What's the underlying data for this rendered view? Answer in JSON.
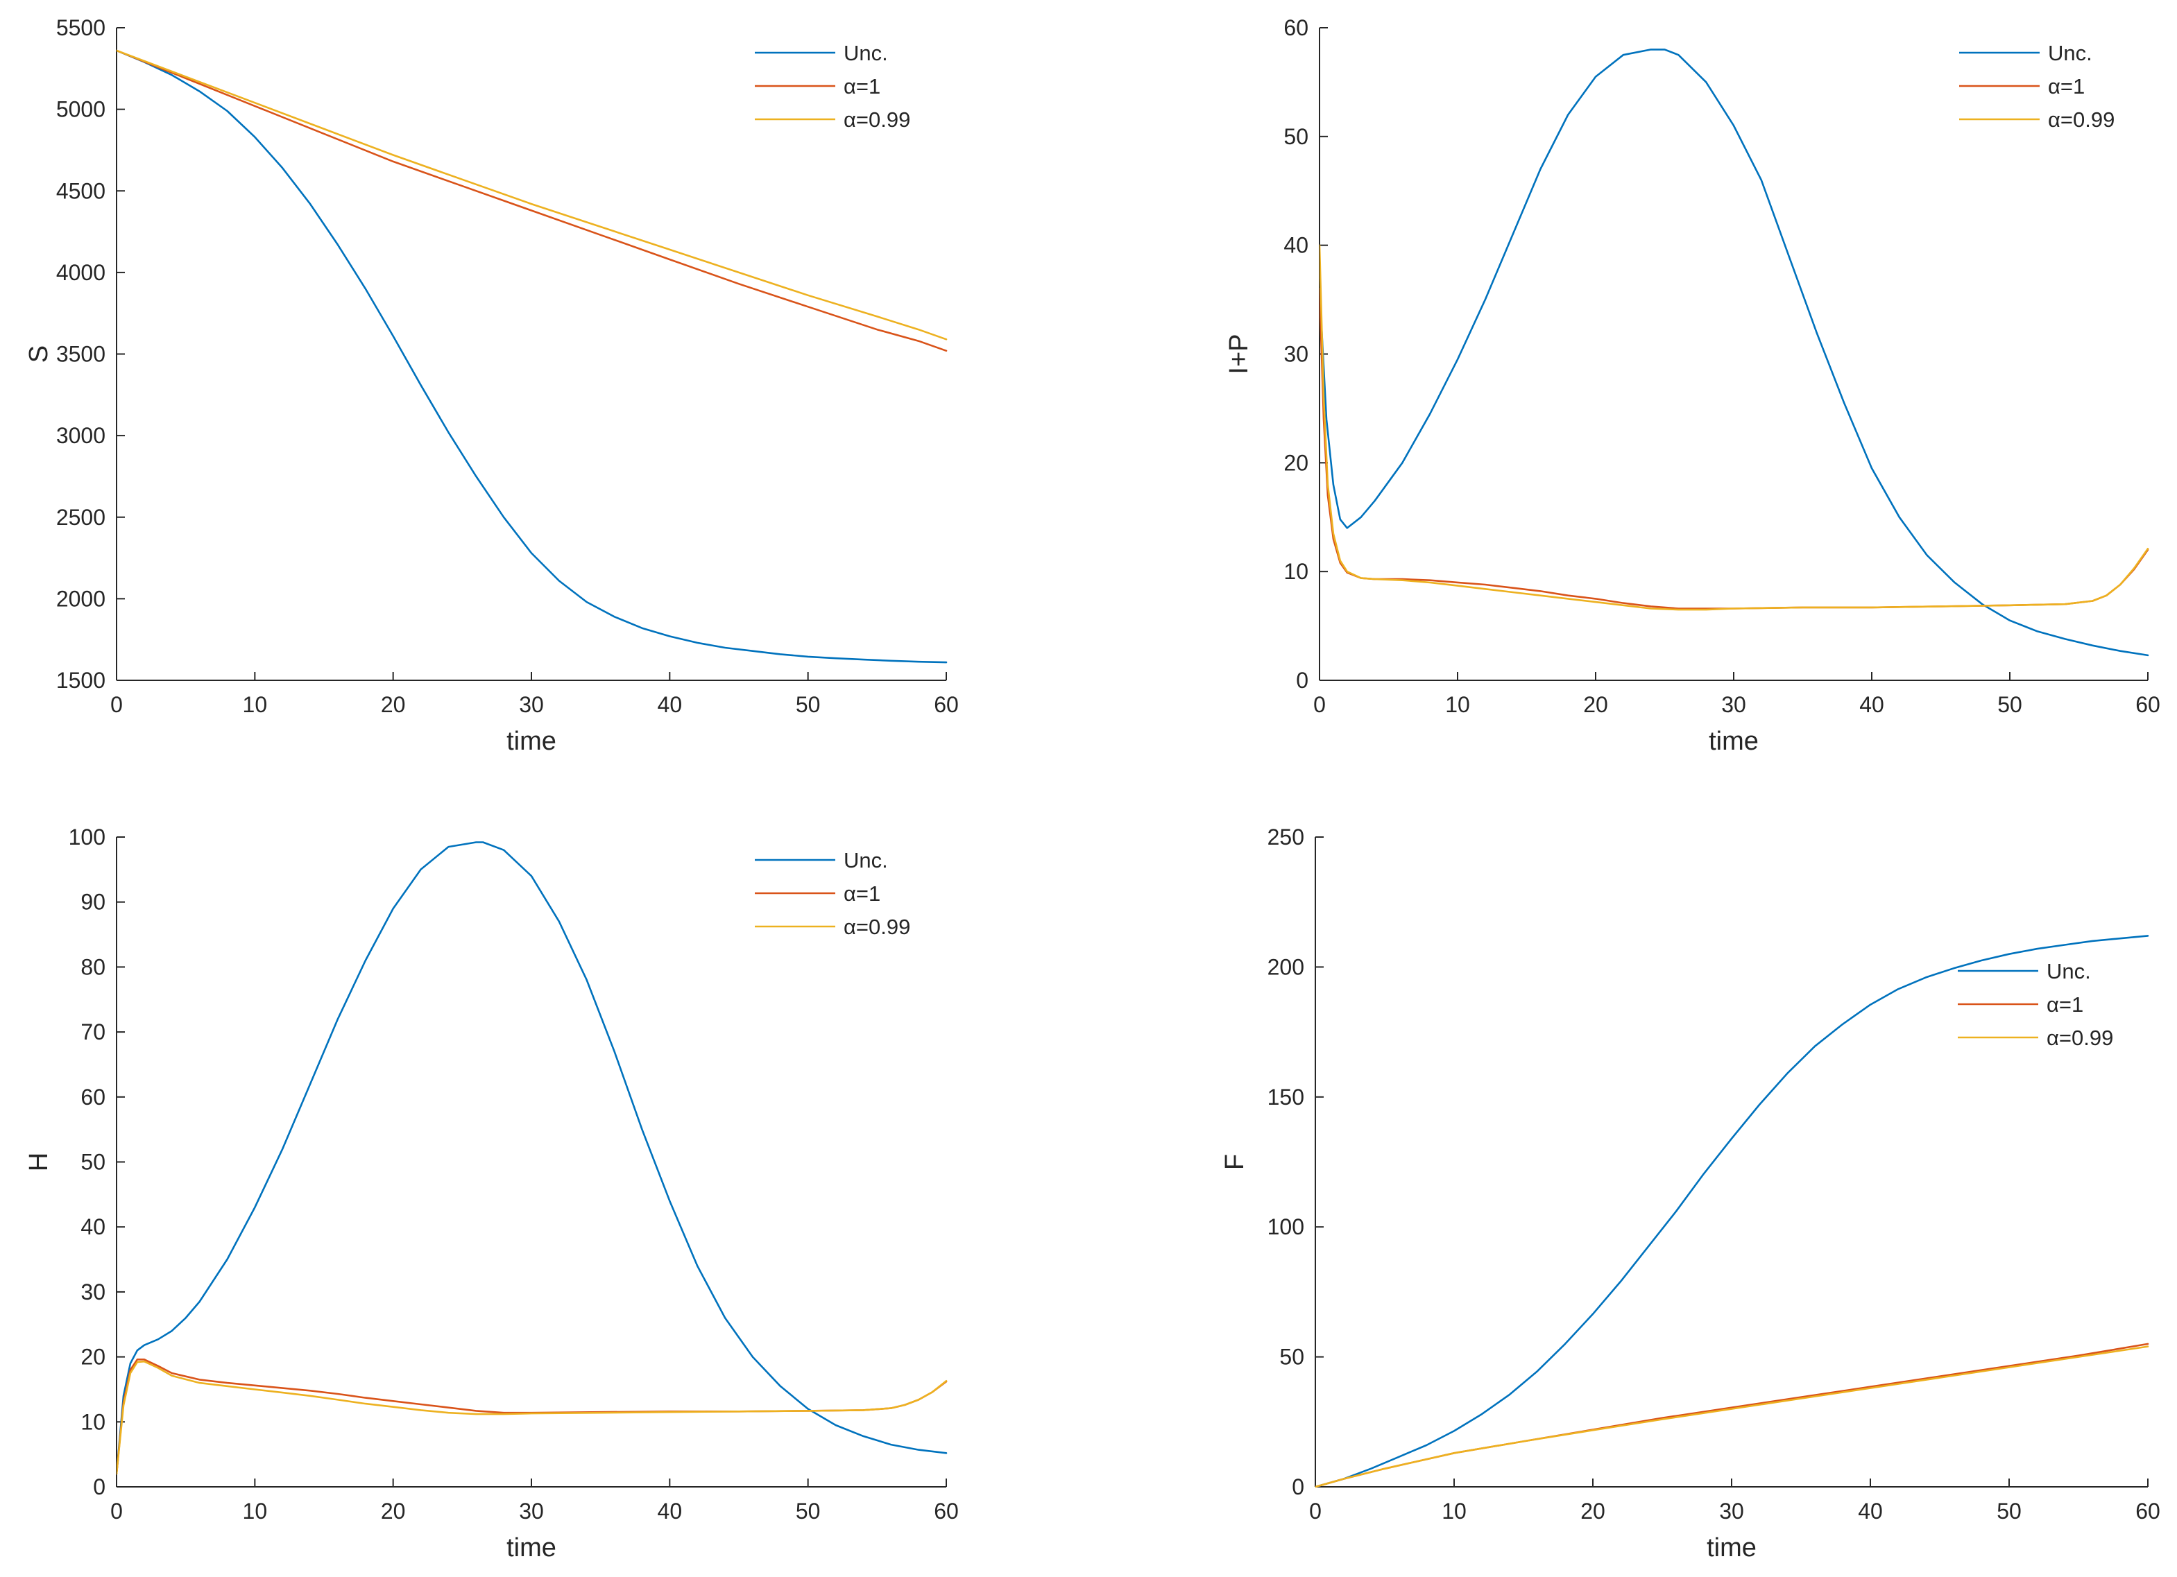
{
  "figure": {
    "background": "#ffffff",
    "axis_color": "#262626"
  },
  "chart_data": [
    {
      "id": "S",
      "type": "line",
      "xlabel": "time",
      "ylabel": "S",
      "xlim": [
        0,
        60
      ],
      "ylim": [
        1500,
        5500
      ],
      "xticks": [
        0,
        10,
        20,
        30,
        40,
        50,
        60
      ],
      "yticks": [
        1500,
        2000,
        2500,
        3000,
        3500,
        4000,
        4500,
        5000,
        5500
      ],
      "legend": {
        "position": "top-right",
        "entries": [
          "Unc.",
          "α=1",
          "α=0.99"
        ]
      },
      "series": [
        {
          "name": "Unc.",
          "color": "#0072BD",
          "x": [
            0,
            2,
            4,
            6,
            8,
            10,
            12,
            14,
            16,
            18,
            20,
            22,
            24,
            26,
            28,
            30,
            32,
            34,
            36,
            38,
            40,
            42,
            44,
            46,
            48,
            50,
            52,
            54,
            56,
            58,
            60
          ],
          "y": [
            5360,
            5290,
            5210,
            5110,
            4990,
            4830,
            4640,
            4420,
            4170,
            3900,
            3610,
            3310,
            3020,
            2750,
            2500,
            2280,
            2110,
            1980,
            1890,
            1820,
            1770,
            1730,
            1700,
            1680,
            1660,
            1645,
            1635,
            1627,
            1620,
            1614,
            1610
          ]
        },
        {
          "name": "α=1",
          "color": "#D95319",
          "x": [
            0,
            5,
            10,
            15,
            20,
            25,
            30,
            35,
            40,
            45,
            50,
            55,
            58,
            60
          ],
          "y": [
            5360,
            5190,
            5020,
            4850,
            4680,
            4530,
            4380,
            4230,
            4080,
            3930,
            3790,
            3650,
            3580,
            3520
          ]
        },
        {
          "name": "α=0.99",
          "color": "#EDB120",
          "x": [
            0,
            5,
            10,
            15,
            20,
            25,
            30,
            35,
            40,
            45,
            50,
            55,
            58,
            60
          ],
          "y": [
            5360,
            5200,
            5040,
            4880,
            4720,
            4570,
            4420,
            4280,
            4140,
            4000,
            3860,
            3730,
            3650,
            3590
          ]
        }
      ]
    },
    {
      "id": "IP",
      "type": "line",
      "xlabel": "time",
      "ylabel": "I+P",
      "xlim": [
        0,
        60
      ],
      "ylim": [
        0,
        60
      ],
      "xticks": [
        0,
        10,
        20,
        30,
        40,
        50,
        60
      ],
      "yticks": [
        0,
        10,
        20,
        30,
        40,
        50,
        60
      ],
      "legend": {
        "position": "top-right",
        "entries": [
          "Unc.",
          "α=1",
          "α=0.99"
        ]
      },
      "series": [
        {
          "name": "Unc.",
          "color": "#0072BD",
          "x": [
            0,
            0.5,
            1,
            1.5,
            2,
            3,
            4,
            6,
            8,
            10,
            12,
            14,
            16,
            18,
            20,
            22,
            24,
            25,
            26,
            28,
            30,
            32,
            34,
            36,
            38,
            40,
            42,
            44,
            46,
            48,
            50,
            52,
            54,
            56,
            58,
            60
          ],
          "y": [
            36,
            24,
            18,
            14.8,
            14,
            15,
            16.5,
            20,
            24.5,
            29.5,
            35,
            41,
            47,
            52,
            55.5,
            57.5,
            58,
            58,
            57.5,
            55,
            51,
            46,
            39,
            32,
            25.5,
            19.5,
            15,
            11.5,
            9,
            7,
            5.5,
            4.5,
            3.8,
            3.2,
            2.7,
            2.3
          ]
        },
        {
          "name": "α=1",
          "color": "#D95319",
          "x": [
            0,
            0.3,
            0.6,
            1,
            1.5,
            2,
            3,
            4,
            6,
            8,
            10,
            12,
            14,
            16,
            18,
            20,
            22,
            24,
            26,
            28,
            30,
            35,
            40,
            45,
            50,
            54,
            56,
            57,
            58,
            59,
            60
          ],
          "y": [
            36,
            24,
            17,
            13,
            10.8,
            9.9,
            9.4,
            9.3,
            9.3,
            9.2,
            9,
            8.8,
            8.5,
            8.2,
            7.8,
            7.5,
            7.1,
            6.8,
            6.6,
            6.6,
            6.6,
            6.7,
            6.7,
            6.8,
            6.9,
            7.0,
            7.3,
            7.8,
            8.8,
            10.2,
            12
          ]
        },
        {
          "name": "α=0.99",
          "color": "#EDB120",
          "x": [
            0,
            0.3,
            0.6,
            1,
            1.5,
            2,
            3,
            4,
            6,
            8,
            10,
            12,
            14,
            16,
            18,
            20,
            22,
            24,
            26,
            28,
            30,
            35,
            40,
            45,
            50,
            54,
            56,
            57,
            58,
            59,
            60
          ],
          "y": [
            40,
            26,
            18,
            13.5,
            11,
            10,
            9.4,
            9.3,
            9.2,
            9,
            8.7,
            8.4,
            8.1,
            7.8,
            7.5,
            7.2,
            6.9,
            6.6,
            6.5,
            6.5,
            6.6,
            6.7,
            6.7,
            6.8,
            6.9,
            7.0,
            7.3,
            7.8,
            8.8,
            10.3,
            12.1
          ]
        }
      ]
    },
    {
      "id": "H",
      "type": "line",
      "xlabel": "time",
      "ylabel": "H",
      "xlim": [
        0,
        60
      ],
      "ylim": [
        0,
        100
      ],
      "xticks": [
        0,
        10,
        20,
        30,
        40,
        50,
        60
      ],
      "yticks": [
        0,
        10,
        20,
        30,
        40,
        50,
        60,
        70,
        80,
        90,
        100
      ],
      "legend": {
        "position": "top-right",
        "entries": [
          "Unc.",
          "α=1",
          "α=0.99"
        ]
      },
      "series": [
        {
          "name": "Unc.",
          "color": "#0072BD",
          "x": [
            0,
            0.5,
            1,
            1.5,
            2,
            3,
            4,
            5,
            6,
            8,
            10,
            12,
            14,
            16,
            18,
            20,
            22,
            24,
            26,
            26.5,
            28,
            30,
            32,
            34,
            36,
            38,
            40,
            42,
            44,
            46,
            48,
            50,
            52,
            54,
            56,
            58,
            60
          ],
          "y": [
            2,
            14,
            19,
            21,
            21.8,
            22.7,
            24,
            26,
            28.5,
            35,
            43,
            52,
            62,
            72,
            81,
            89,
            95,
            98.5,
            99.2,
            99.2,
            98,
            94,
            87,
            78,
            67,
            55,
            44,
            34,
            26,
            20,
            15.5,
            12,
            9.5,
            7.8,
            6.5,
            5.7,
            5.2
          ]
        },
        {
          "name": "α=1",
          "color": "#D95319",
          "x": [
            0,
            0.5,
            1,
            1.5,
            2,
            3,
            4,
            6,
            8,
            10,
            12,
            14,
            16,
            18,
            20,
            22,
            24,
            26,
            28,
            30,
            35,
            40,
            45,
            50,
            54,
            56,
            57,
            58,
            59,
            60
          ],
          "y": [
            2,
            13,
            18,
            19.6,
            19.6,
            18.6,
            17.5,
            16.5,
            16,
            15.6,
            15.2,
            14.8,
            14.3,
            13.7,
            13.2,
            12.7,
            12.2,
            11.7,
            11.4,
            11.4,
            11.5,
            11.6,
            11.6,
            11.7,
            11.8,
            12.1,
            12.6,
            13.4,
            14.6,
            16.2
          ]
        },
        {
          "name": "α=0.99",
          "color": "#EDB120",
          "x": [
            0,
            0.5,
            1,
            1.5,
            2,
            3,
            4,
            6,
            8,
            10,
            12,
            14,
            16,
            18,
            20,
            22,
            24,
            26,
            28,
            30,
            35,
            40,
            45,
            50,
            54,
            56,
            57,
            58,
            59,
            60
          ],
          "y": [
            2,
            12.5,
            17.5,
            19.2,
            19.3,
            18.3,
            17.1,
            16,
            15.5,
            15,
            14.5,
            14,
            13.4,
            12.8,
            12.3,
            11.8,
            11.4,
            11.2,
            11.2,
            11.3,
            11.4,
            11.5,
            11.6,
            11.7,
            11.8,
            12.1,
            12.6,
            13.4,
            14.6,
            16.3
          ]
        }
      ]
    },
    {
      "id": "F",
      "type": "line",
      "xlabel": "time",
      "ylabel": "F",
      "xlim": [
        0,
        60
      ],
      "ylim": [
        0,
        250
      ],
      "xticks": [
        0,
        10,
        20,
        30,
        40,
        50,
        60
      ],
      "yticks": [
        0,
        50,
        100,
        150,
        200,
        250
      ],
      "legend": {
        "position": "right",
        "entries": [
          "Unc.",
          "α=1",
          "α=0.99"
        ]
      },
      "series": [
        {
          "name": "Unc.",
          "color": "#0072BD",
          "x": [
            0,
            2,
            4,
            6,
            8,
            10,
            12,
            14,
            16,
            18,
            20,
            22,
            24,
            26,
            28,
            30,
            32,
            34,
            36,
            38,
            40,
            42,
            44,
            46,
            48,
            50,
            52,
            54,
            56,
            58,
            60
          ],
          "y": [
            0,
            3,
            7,
            11.5,
            16,
            21.5,
            28,
            35.5,
            44.5,
            55,
            66.5,
            79,
            92.5,
            106,
            120.5,
            134,
            147,
            159,
            169.5,
            178,
            185.5,
            191.5,
            196,
            199.5,
            202.5,
            205,
            207,
            208.5,
            210,
            211,
            212
          ]
        },
        {
          "name": "α=1",
          "color": "#D95319",
          "x": [
            0,
            2,
            5,
            10,
            15,
            20,
            25,
            30,
            35,
            40,
            45,
            50,
            55,
            60
          ],
          "y": [
            0,
            3,
            7,
            13,
            17.5,
            22,
            26.5,
            30.5,
            34.5,
            38.5,
            42.5,
            46.5,
            50.5,
            55
          ]
        },
        {
          "name": "α=0.99",
          "color": "#EDB120",
          "x": [
            0,
            2,
            5,
            10,
            15,
            20,
            25,
            30,
            35,
            40,
            45,
            50,
            55,
            60
          ],
          "y": [
            0,
            3,
            7,
            13,
            17.5,
            21.8,
            26,
            30,
            34,
            38,
            42,
            46,
            50,
            54
          ]
        }
      ]
    }
  ]
}
